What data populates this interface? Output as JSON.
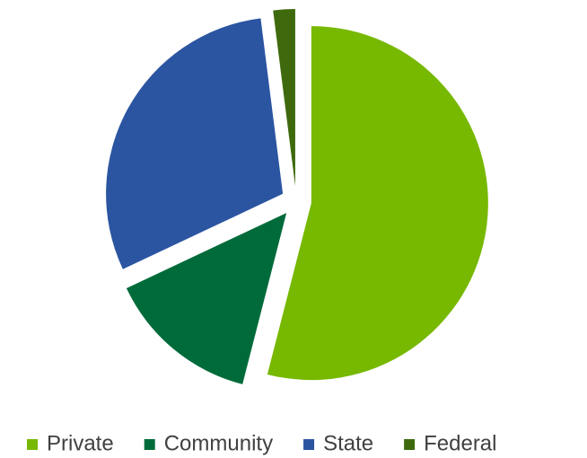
{
  "chart_data": {
    "type": "pie",
    "categories": [
      "Private",
      "Community",
      "State",
      "Federal"
    ],
    "values": [
      54,
      14,
      30,
      2
    ],
    "colors": [
      "#77b800",
      "#006b3a",
      "#2b55a1",
      "#3e6a0d"
    ],
    "legend": "bottom"
  }
}
